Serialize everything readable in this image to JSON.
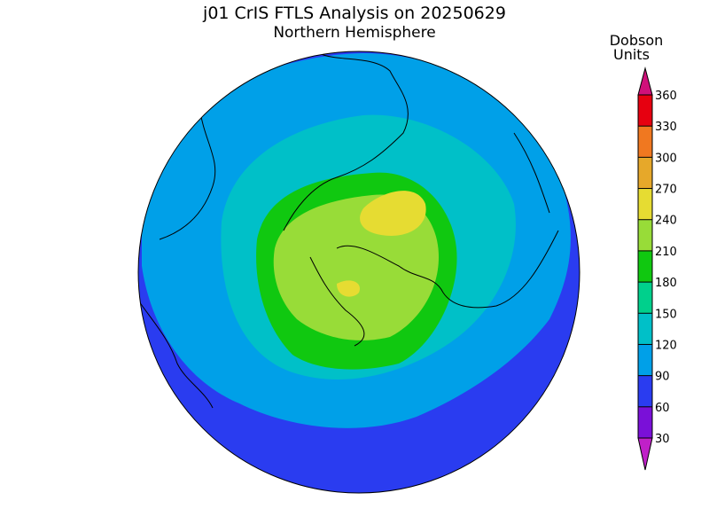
{
  "title": "j01 CrIS FTLS Analysis on 20250629",
  "subtitle": "Northern Hemisphere",
  "colorbar": {
    "label_lines": [
      "Dobson",
      "Units"
    ],
    "ticks": [
      30,
      60,
      90,
      120,
      150,
      180,
      210,
      240,
      270,
      300,
      330,
      360
    ],
    "colors": [
      "#7a10d8",
      "#2a3cf0",
      "#00a0e8",
      "#00c0c8",
      "#00d08c",
      "#10c810",
      "#98dc38",
      "#e6dc32",
      "#e6a82a",
      "#f07820",
      "#e60010"
    ],
    "under_color": "#c020c8",
    "over_color": "#d0107a"
  }
}
